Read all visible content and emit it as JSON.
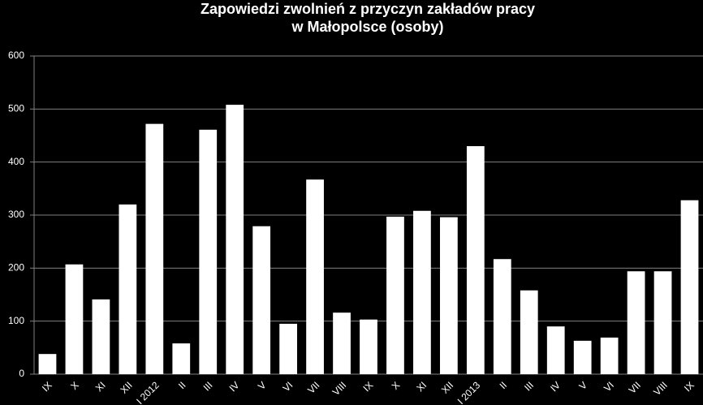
{
  "chart_data": {
    "type": "bar",
    "title": "Zapowiedzi zwolnień z przyczyn zakładów pracy",
    "subtitle": "w Małopolsce (osoby)",
    "categories": [
      "IX",
      "X",
      "XI",
      "XII",
      "I 2012",
      "II",
      "III",
      "IV",
      "V",
      "VI",
      "VII",
      "VIII",
      "IX",
      "X",
      "XI",
      "XII",
      "I 2013",
      "II",
      "III",
      "IV",
      "V",
      "VI",
      "VII",
      "VIII",
      "IX"
    ],
    "values": [
      38,
      207,
      141,
      320,
      472,
      58,
      461,
      508,
      279,
      95,
      367,
      116,
      103,
      297,
      308,
      296,
      430,
      217,
      158,
      90,
      63,
      69,
      194,
      194,
      328
    ],
    "color": "#ffffff",
    "ylim": [
      0,
      600
    ],
    "yticks": [
      0,
      100,
      200,
      300,
      400,
      500,
      600
    ],
    "grid": true
  }
}
